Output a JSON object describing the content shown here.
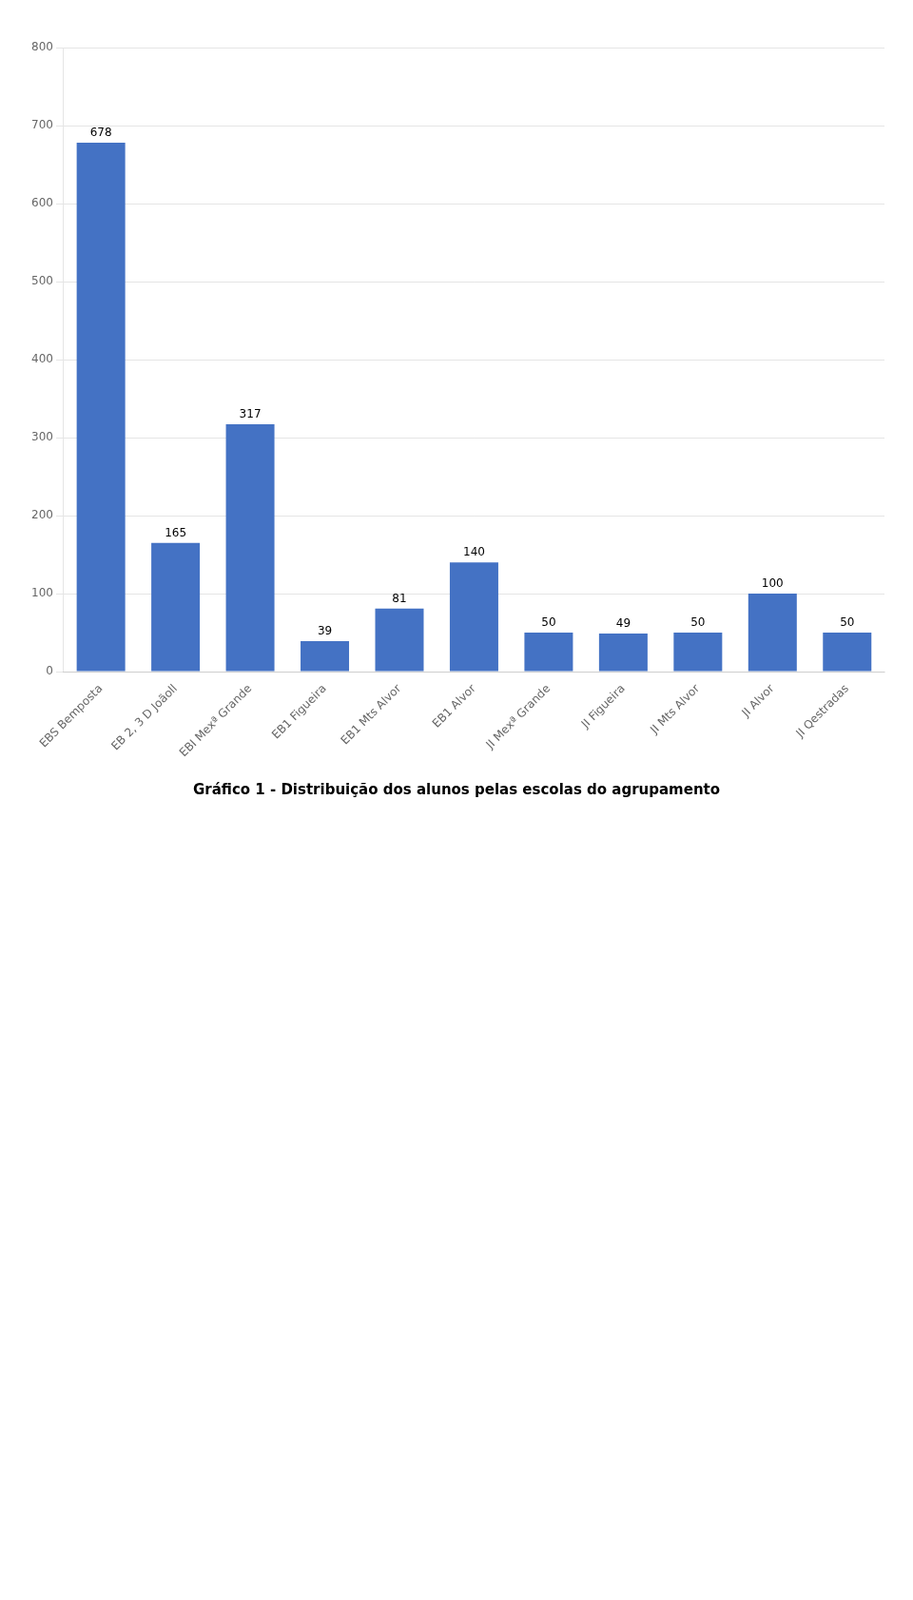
{
  "chart_data": {
    "type": "bar",
    "title": "Gráfico 1 - Distribuição dos alunos pelas escolas do agrupamento",
    "categories": [
      "EBS Bemposta",
      "EB 2, 3 D Joãoll",
      "EBI Mexª Grande",
      "EB1 Figueira",
      "EB1 Mts Alvor",
      "EB1 Alvor",
      "JI Mexª Grande",
      "JI Figueira",
      "JI Mts Alvor",
      "JI Alvor",
      "JI Qestradas"
    ],
    "values": [
      678,
      165,
      317,
      39,
      81,
      140,
      50,
      49,
      50,
      100,
      50
    ],
    "color": "#4472C4",
    "ylim": [
      0,
      800
    ],
    "yticks": [
      0,
      100,
      200,
      300,
      400,
      500,
      600,
      700,
      800
    ],
    "grid": true,
    "data_labels": true
  }
}
